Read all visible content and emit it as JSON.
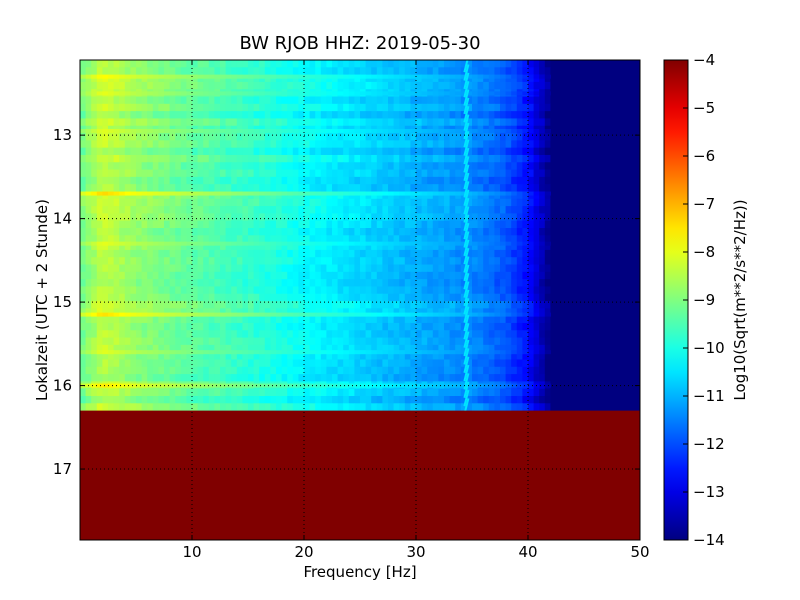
{
  "chart_data": {
    "type": "heatmap",
    "title": "BW RJOB HHZ: 2019-05-30",
    "xlabel": "Frequency [Hz]",
    "ylabel": "Lokalzeit (UTC + 2 Stunde)",
    "colorbar_label": "Log10(Sqrt(m**2/s**2/Hz))",
    "xlim": [
      0,
      50
    ],
    "ylim": [
      17.85,
      12.1
    ],
    "x_ticks": [
      10,
      20,
      30,
      40,
      50
    ],
    "x_tick_labels": [
      "10",
      "20",
      "30",
      "40",
      "50"
    ],
    "y_ticks": [
      13,
      14,
      15,
      16,
      17
    ],
    "y_tick_labels": [
      "13",
      "14",
      "15",
      "16",
      "17"
    ],
    "colorbar_range": [
      -14,
      -4
    ],
    "colorbar_ticks": [
      -4,
      -5,
      -6,
      -7,
      -8,
      -9,
      -10,
      -11,
      -12,
      -13,
      -14
    ],
    "colorbar_tick_labels": [
      "−4",
      "−5",
      "−6",
      "−7",
      "−8",
      "−9",
      "−10",
      "−11",
      "−12",
      "−13",
      "−14"
    ],
    "colormap": "jet",
    "grid": true,
    "data_end_time": 16.3,
    "fill_value_after_end": -4,
    "spectrum_profile": [
      {
        "freq": 0,
        "value": -9.2
      },
      {
        "freq": 2,
        "value": -8.3
      },
      {
        "freq": 5,
        "value": -8.8
      },
      {
        "freq": 10,
        "value": -9.3
      },
      {
        "freq": 15,
        "value": -9.7
      },
      {
        "freq": 20,
        "value": -10.2
      },
      {
        "freq": 25,
        "value": -10.6
      },
      {
        "freq": 30,
        "value": -11.0
      },
      {
        "freq": 35,
        "value": -11.4
      },
      {
        "freq": 38,
        "value": -11.9
      },
      {
        "freq": 40,
        "value": -12.6
      },
      {
        "freq": 41.5,
        "value": -13.6
      },
      {
        "freq": 42,
        "value": -14
      },
      {
        "freq": 50,
        "value": -14
      }
    ],
    "bright_bands": [
      {
        "time": 12.3,
        "value_offset": 0.6
      },
      {
        "time": 12.5,
        "value_offset": 0.35
      },
      {
        "time": 12.95,
        "value_offset": 0.3
      },
      {
        "time": 13.7,
        "value_offset": 1.0
      },
      {
        "time": 14.3,
        "value_offset": 0.35
      },
      {
        "time": 15.15,
        "value_offset": 0.9
      },
      {
        "time": 15.6,
        "value_offset": 0.3
      },
      {
        "time": 16.0,
        "value_offset": 0.8
      }
    ],
    "tonal_line": {
      "freq": 34.5,
      "value": -10.5
    }
  }
}
